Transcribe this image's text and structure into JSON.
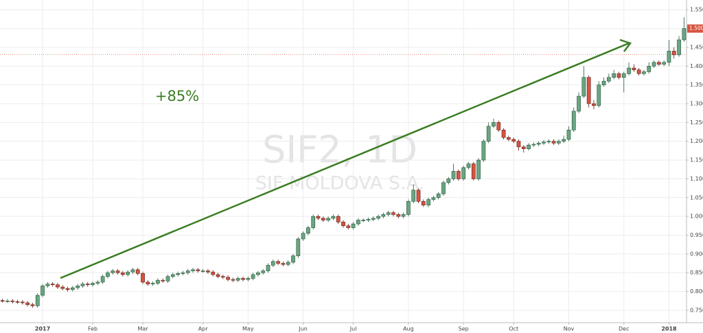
{
  "chart_data": {
    "type": "candlestick",
    "watermark": "SIF2, 1D",
    "watermark_subtitle": "SIF MOLDOVA S.A.",
    "annotation": "+85%",
    "xlim": [
      -0.5,
      136.5
    ],
    "xticks": [
      {
        "value": 8,
        "label": "2017"
      },
      {
        "value": 18,
        "label": "Feb"
      },
      {
        "value": 28,
        "label": "Mar"
      },
      {
        "value": 40,
        "label": "Apr"
      },
      {
        "value": 49,
        "label": "May"
      },
      {
        "value": 60,
        "label": "Jun"
      },
      {
        "value": 70,
        "label": "Jul"
      },
      {
        "value": 81,
        "label": "Aug"
      },
      {
        "value": 92,
        "label": "Sep"
      },
      {
        "value": 102,
        "label": "Oct"
      },
      {
        "value": 113,
        "label": "Nov"
      },
      {
        "value": 124,
        "label": "Dec"
      },
      {
        "value": 133,
        "label": "2018"
      }
    ],
    "ylim": [
      0.717,
      1.576
    ],
    "yticks": [
      {
        "value": 0.75,
        "label": "0.7500"
      },
      {
        "value": 0.8,
        "label": "0.8000"
      },
      {
        "value": 0.85,
        "label": "0.8500"
      },
      {
        "value": 0.9,
        "label": "0.9000"
      },
      {
        "value": 0.95,
        "label": "0.9500"
      },
      {
        "value": 1,
        "label": "1.0000"
      },
      {
        "value": 1.05,
        "label": "1.0500"
      },
      {
        "value": 1.1,
        "label": "1.1000"
      },
      {
        "value": 1.15,
        "label": "1.1500"
      },
      {
        "value": 1.2,
        "label": "1.2000"
      },
      {
        "value": 1.25,
        "label": "1.2500"
      },
      {
        "value": 1.3,
        "label": "1.3000"
      },
      {
        "value": 1.35,
        "label": "1.3500"
      },
      {
        "value": 1.4,
        "label": "1.4000"
      },
      {
        "value": 1.45,
        "label": "1.4500"
      },
      {
        "value": 1.5,
        "label": "1.5000"
      },
      {
        "value": 1.55,
        "label": "1.5500"
      }
    ],
    "grid": true,
    "up_color": "#6ba583",
    "down_color": "#d75442",
    "annotation_color": "#3a7d22",
    "reference_line": 1.431,
    "last_price": {
      "value": 1.5,
      "label": "1.5000"
    },
    "open": [
      0.776,
      0.775,
      0.775,
      0.773,
      0.772,
      0.77,
      0.765,
      0.762,
      0.79,
      0.815,
      0.82,
      0.818,
      0.812,
      0.808,
      0.805,
      0.81,
      0.815,
      0.82,
      0.818,
      0.822,
      0.825,
      0.84,
      0.85,
      0.855,
      0.85,
      0.845,
      0.852,
      0.858,
      0.848,
      0.825,
      0.82,
      0.822,
      0.83,
      0.828,
      0.84,
      0.845,
      0.848,
      0.85,
      0.855,
      0.858,
      0.855,
      0.855,
      0.852,
      0.845,
      0.84,
      0.838,
      0.832,
      0.83,
      0.835,
      0.832,
      0.835,
      0.845,
      0.85,
      0.855,
      0.87,
      0.88,
      0.875,
      0.872,
      0.878,
      0.895,
      0.94,
      0.955,
      0.97,
      1.0,
      0.995,
      0.99,
      0.995,
      1.0,
      0.985,
      0.975,
      0.97,
      0.98,
      0.99,
      0.99,
      0.992,
      0.995,
      1.0,
      1.005,
      1.01,
      1.005,
      1.0,
      1.005,
      1.04,
      1.07,
      1.04,
      1.03,
      1.045,
      1.05,
      1.06,
      1.09,
      1.1,
      1.12,
      1.1,
      1.13,
      1.14,
      1.1,
      1.15,
      1.2,
      1.24,
      1.25,
      1.23,
      1.21,
      1.205,
      1.2,
      1.185,
      1.18,
      1.19,
      1.192,
      1.195,
      1.198,
      1.2,
      1.195,
      1.2,
      1.205,
      1.23,
      1.28,
      1.32,
      1.37,
      1.3,
      1.295,
      1.35,
      1.36,
      1.37,
      1.38,
      1.37,
      1.38,
      1.395,
      1.39,
      1.38,
      1.385,
      1.4,
      1.41,
      1.405,
      1.41,
      1.44,
      1.43,
      1.47
    ],
    "high": [
      0.781,
      0.78,
      0.78,
      0.778,
      0.777,
      0.775,
      0.77,
      0.795,
      0.82,
      0.825,
      0.825,
      0.823,
      0.817,
      0.813,
      0.815,
      0.82,
      0.825,
      0.825,
      0.827,
      0.83,
      0.845,
      0.855,
      0.86,
      0.86,
      0.855,
      0.857,
      0.863,
      0.863,
      0.853,
      0.83,
      0.827,
      0.835,
      0.835,
      0.845,
      0.85,
      0.853,
      0.855,
      0.86,
      0.863,
      0.863,
      0.86,
      0.86,
      0.857,
      0.85,
      0.845,
      0.843,
      0.837,
      0.84,
      0.84,
      0.84,
      0.85,
      0.855,
      0.86,
      0.875,
      0.885,
      0.885,
      0.88,
      0.883,
      0.9,
      0.945,
      0.96,
      0.975,
      1.005,
      1.005,
      1.0,
      1.0,
      1.005,
      1.005,
      0.99,
      0.98,
      0.985,
      0.995,
      0.995,
      0.997,
      1.0,
      1.005,
      1.01,
      1.015,
      1.015,
      1.01,
      1.01,
      1.045,
      1.085,
      1.075,
      1.045,
      1.05,
      1.055,
      1.065,
      1.095,
      1.105,
      1.14,
      1.125,
      1.135,
      1.145,
      1.145,
      1.155,
      1.205,
      1.25,
      1.26,
      1.255,
      1.235,
      1.215,
      1.21,
      1.205,
      1.19,
      1.195,
      1.197,
      1.2,
      1.203,
      1.205,
      1.205,
      1.205,
      1.215,
      1.24,
      1.29,
      1.33,
      1.4,
      1.375,
      1.31,
      1.36,
      1.37,
      1.38,
      1.39,
      1.385,
      1.385,
      1.41,
      1.405,
      1.395,
      1.39,
      1.41,
      1.415,
      1.415,
      1.415,
      1.47,
      1.45,
      1.48,
      1.53
    ],
    "low": [
      0.77,
      0.77,
      0.768,
      0.767,
      0.765,
      0.76,
      0.757,
      0.757,
      0.785,
      0.81,
      0.813,
      0.807,
      0.803,
      0.8,
      0.8,
      0.805,
      0.81,
      0.813,
      0.813,
      0.817,
      0.82,
      0.835,
      0.845,
      0.845,
      0.84,
      0.84,
      0.847,
      0.843,
      0.82,
      0.815,
      0.815,
      0.817,
      0.823,
      0.823,
      0.835,
      0.84,
      0.843,
      0.845,
      0.85,
      0.85,
      0.85,
      0.847,
      0.84,
      0.835,
      0.833,
      0.827,
      0.825,
      0.825,
      0.827,
      0.827,
      0.83,
      0.84,
      0.845,
      0.85,
      0.865,
      0.87,
      0.867,
      0.867,
      0.873,
      0.89,
      0.935,
      0.95,
      0.965,
      0.99,
      0.985,
      0.985,
      0.99,
      0.98,
      0.97,
      0.965,
      0.965,
      0.975,
      0.985,
      0.985,
      0.987,
      0.99,
      0.995,
      1.0,
      1.0,
      0.995,
      0.995,
      1.0,
      1.035,
      1.035,
      1.025,
      1.025,
      1.04,
      1.045,
      1.055,
      1.085,
      1.095,
      1.095,
      1.095,
      1.125,
      1.095,
      1.095,
      1.145,
      1.195,
      1.235,
      1.225,
      1.205,
      1.2,
      1.195,
      1.175,
      1.17,
      1.175,
      1.185,
      1.187,
      1.19,
      1.193,
      1.19,
      1.19,
      1.195,
      1.2,
      1.225,
      1.275,
      1.315,
      1.29,
      1.285,
      1.29,
      1.345,
      1.355,
      1.365,
      1.365,
      1.33,
      1.375,
      1.385,
      1.375,
      1.375,
      1.38,
      1.395,
      1.4,
      1.4,
      1.4,
      1.42,
      1.425,
      1.465
    ],
    "close": [
      0.775,
      0.775,
      0.773,
      0.772,
      0.77,
      0.765,
      0.762,
      0.79,
      0.815,
      0.82,
      0.818,
      0.812,
      0.808,
      0.805,
      0.81,
      0.815,
      0.82,
      0.818,
      0.822,
      0.825,
      0.84,
      0.85,
      0.855,
      0.85,
      0.845,
      0.852,
      0.858,
      0.848,
      0.825,
      0.82,
      0.822,
      0.83,
      0.828,
      0.84,
      0.845,
      0.848,
      0.85,
      0.855,
      0.858,
      0.855,
      0.855,
      0.852,
      0.845,
      0.84,
      0.838,
      0.832,
      0.83,
      0.835,
      0.832,
      0.835,
      0.845,
      0.85,
      0.855,
      0.87,
      0.88,
      0.875,
      0.872,
      0.878,
      0.895,
      0.94,
      0.955,
      0.97,
      1.0,
      0.995,
      0.99,
      0.995,
      1.0,
      0.985,
      0.975,
      0.97,
      0.98,
      0.99,
      0.99,
      0.992,
      0.995,
      1.0,
      1.005,
      1.01,
      1.005,
      1.0,
      1.005,
      1.04,
      1.07,
      1.04,
      1.03,
      1.045,
      1.05,
      1.06,
      1.09,
      1.1,
      1.12,
      1.1,
      1.13,
      1.14,
      1.1,
      1.15,
      1.2,
      1.24,
      1.25,
      1.23,
      1.21,
      1.205,
      1.2,
      1.185,
      1.18,
      1.19,
      1.192,
      1.195,
      1.198,
      1.2,
      1.195,
      1.2,
      1.205,
      1.23,
      1.28,
      1.32,
      1.37,
      1.3,
      1.295,
      1.35,
      1.36,
      1.37,
      1.38,
      1.37,
      1.38,
      1.395,
      1.39,
      1.38,
      1.385,
      1.4,
      1.41,
      1.405,
      1.41,
      1.44,
      1.43,
      1.47,
      1.5
    ]
  }
}
